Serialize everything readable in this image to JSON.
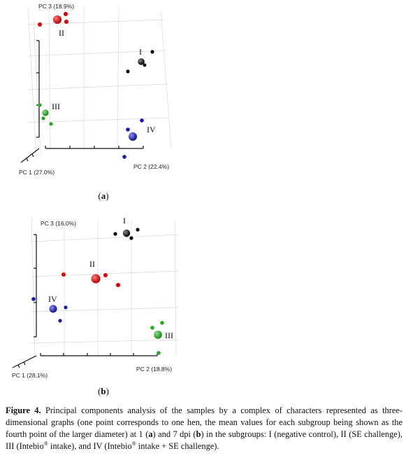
{
  "panels": [
    {
      "id": "a",
      "axes": {
        "x": "PC 1 (27.0%)",
        "y": "PC 2 (22.4%)",
        "z": "PC 3 (18.9%)"
      },
      "groups": [
        {
          "label": "I",
          "color": "#000000",
          "role": "negative control"
        },
        {
          "label": "II",
          "color": "#dd0000",
          "role": "SE challenge"
        },
        {
          "label": "III",
          "color": "#22aa22",
          "role": "Intebio intake"
        },
        {
          "label": "IV",
          "color": "#1a1aaa",
          "role": "Intebio intake + SE challenge"
        }
      ],
      "sub_label": "a"
    },
    {
      "id": "b",
      "axes": {
        "x": "PC 1 (28.1%)",
        "y": "PC 2 (18.8%)",
        "z": "PC 3 (16.0%)"
      },
      "groups": [
        {
          "label": "I",
          "color": "#000000"
        },
        {
          "label": "II",
          "color": "#dd0000"
        },
        {
          "label": "III",
          "color": "#22aa22"
        },
        {
          "label": "IV",
          "color": "#1a1aaa"
        }
      ],
      "sub_label": "b"
    }
  ],
  "caption": {
    "fig_label": "Figure 4.",
    "text_1": " Principal components analysis of the samples by a complex of characters represented as three-dimensional graphs (one point corresponds to one hen, the mean values for each subgroup being shown as the fourth point of the larger diameter) at 1 (",
    "ref_a": "a",
    "text_2": ") and 7 dpi (",
    "ref_b": "b",
    "text_3": ") in the subgroups: I (negative control), II (SE challenge), III (Intebio",
    "reg_1": "®",
    "text_4": " intake), and IV (Intebio",
    "reg_2": "®",
    "text_5": " intake + SE challenge)."
  }
}
